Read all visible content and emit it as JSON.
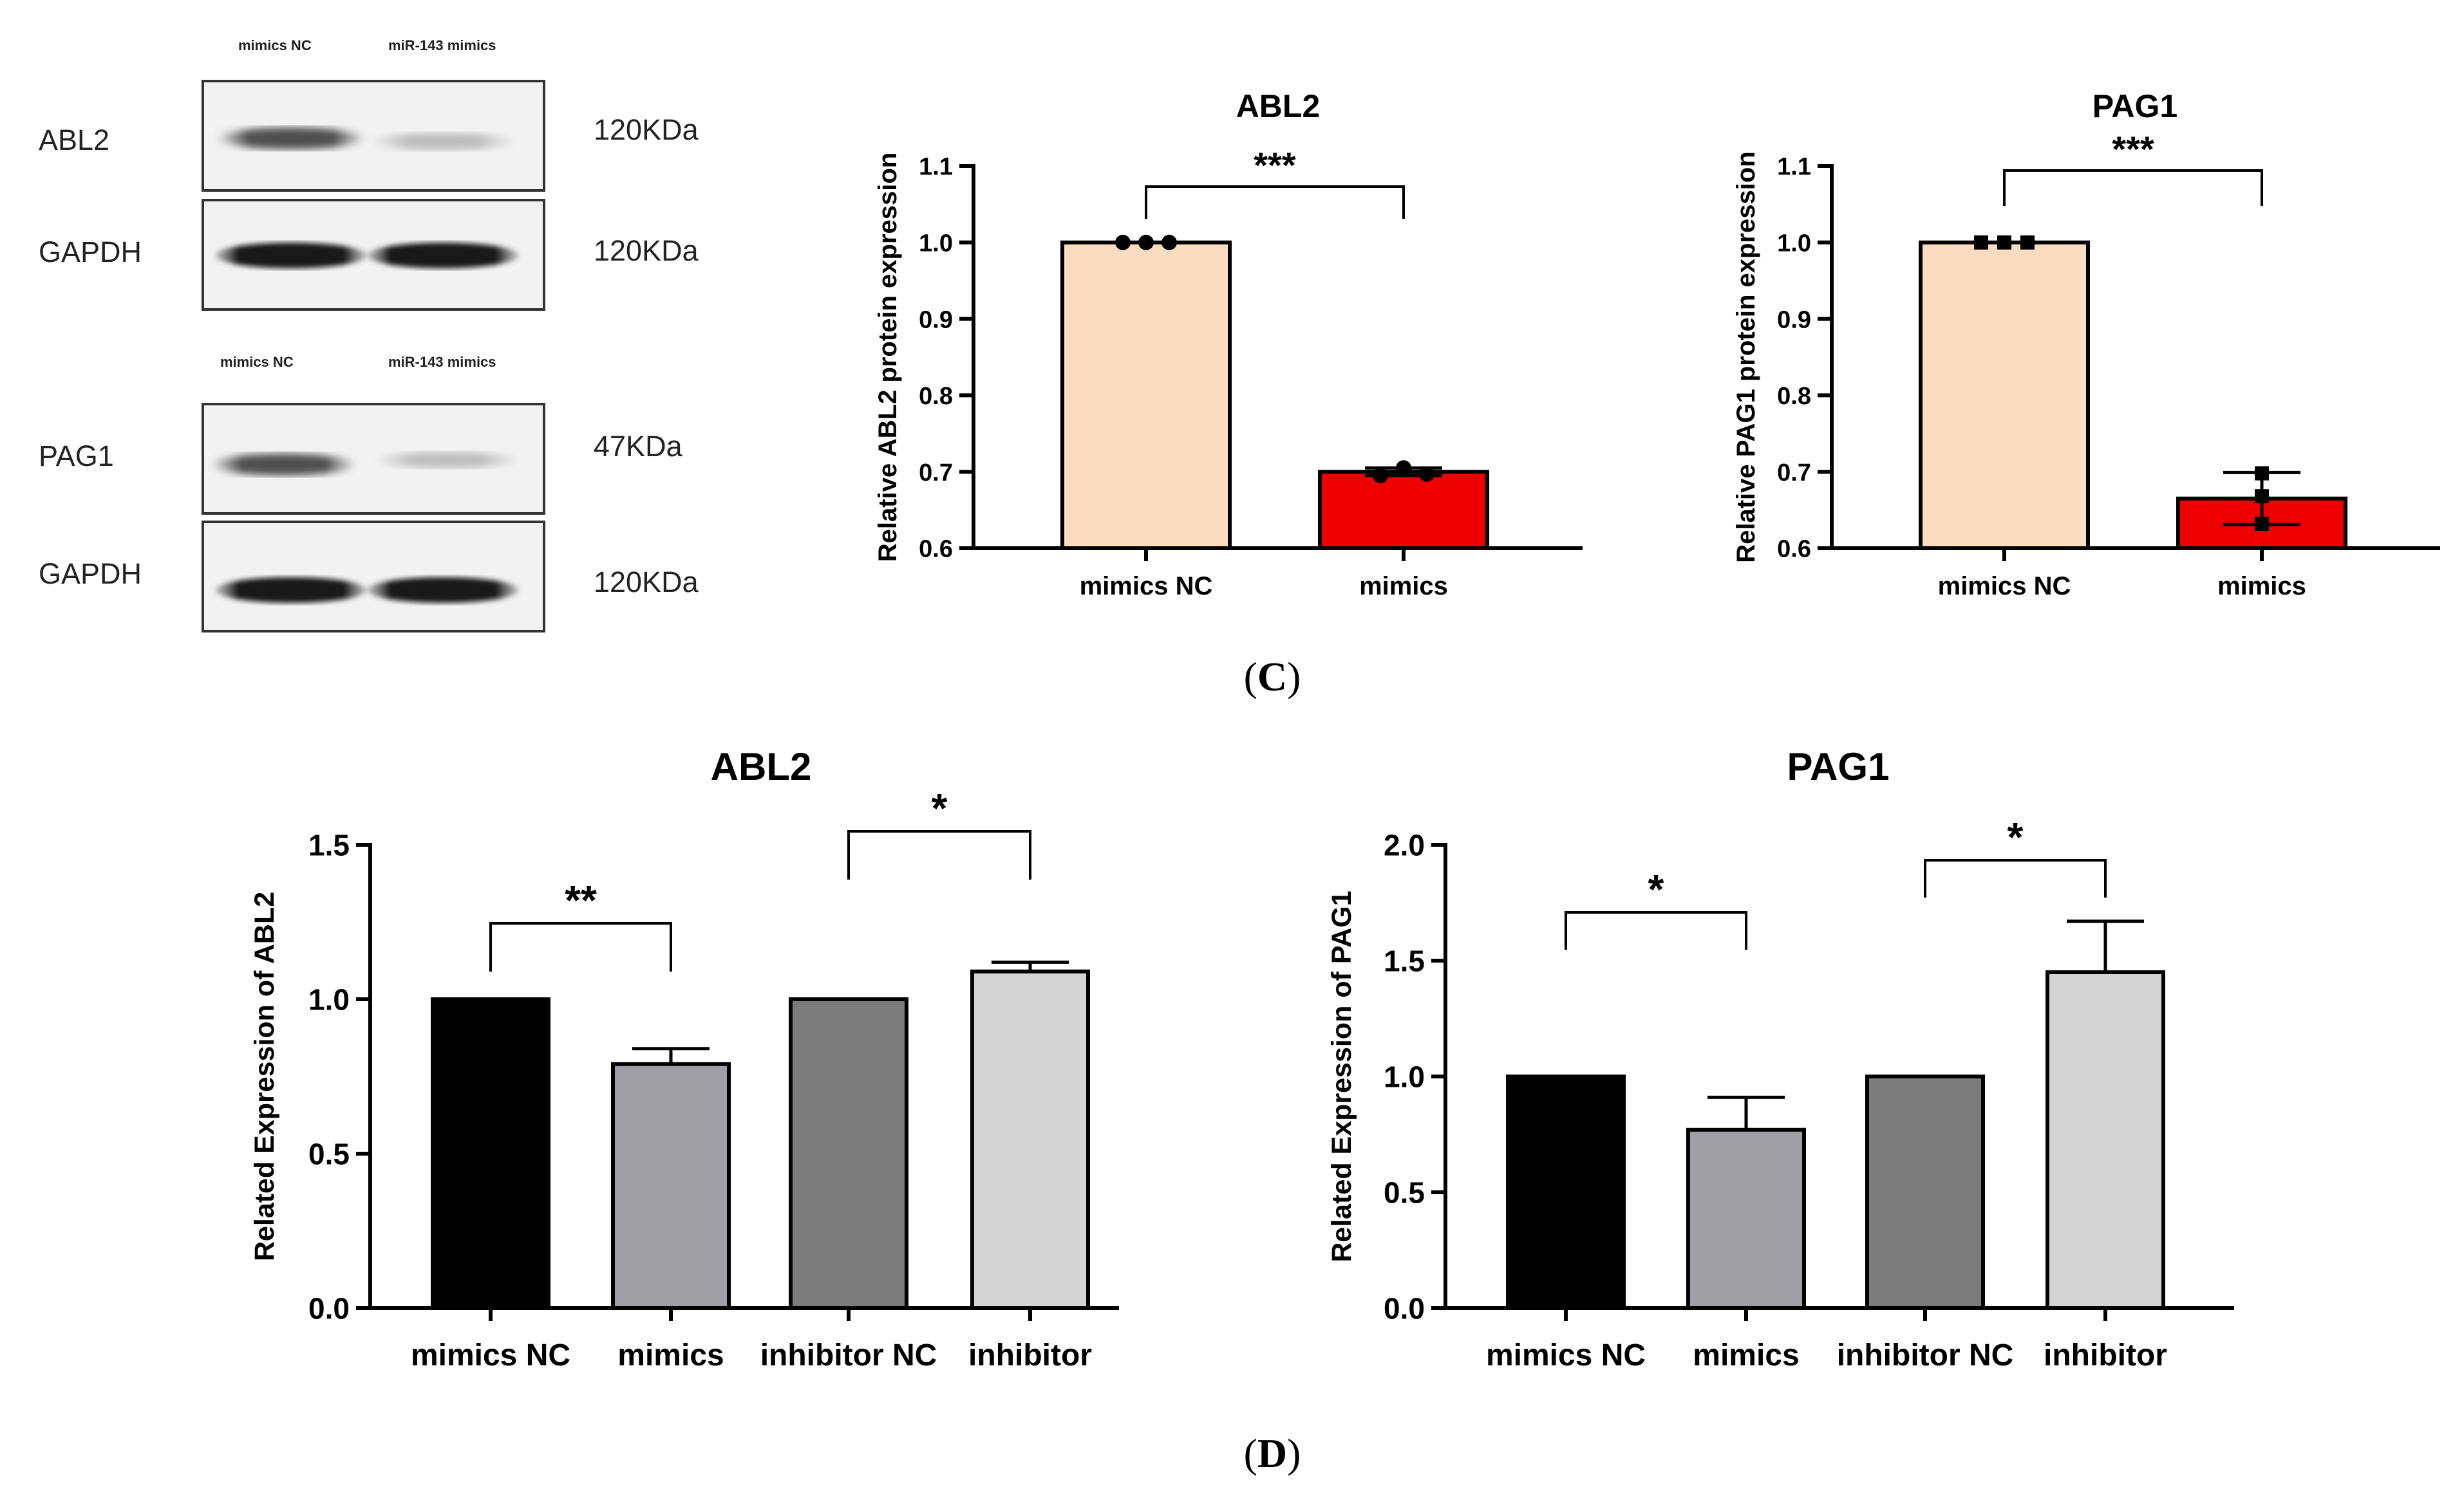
{
  "western_blot": {
    "blot1": {
      "lanes": [
        "mimics NC",
        "miR-143 mimics"
      ],
      "rows": [
        {
          "protein": "ABL2",
          "size": "120KDa"
        },
        {
          "protein": "GAPDH",
          "size": "120KDa"
        }
      ]
    },
    "blot2": {
      "lanes": [
        "mimics NC",
        "miR-143 mimics"
      ],
      "rows": [
        {
          "protein": "PAG1",
          "size": "47KDa"
        },
        {
          "protein": "GAPDH",
          "size": "120KDa"
        }
      ]
    }
  },
  "panel_labels": {
    "c_prefix": "(",
    "c_letter": "C",
    "c_suffix": ")",
    "d_prefix": "(",
    "d_letter": "D",
    "d_suffix": ")"
  },
  "colors": {
    "mimics_nc_c": "#fbdcc0",
    "mimics_c": "#ee0000",
    "d_bar1": "#000000",
    "d_bar2": "#a0a0a4",
    "d_bar3": "#7c7c7c",
    "d_bar4": "#d4d4d4"
  },
  "chart_data": [
    {
      "id": "c-abl2",
      "type": "bar",
      "title": "ABL2",
      "ylabel": "Relative ABL2 protein expression",
      "xlabel": "",
      "categories": [
        "mimics NC",
        "mimics"
      ],
      "values": [
        1.0,
        0.7
      ],
      "errors": [
        0,
        0.005
      ],
      "points": [
        [
          1.0,
          1.0,
          1.0
        ],
        [
          0.695,
          0.705,
          0.697
        ]
      ],
      "ylim": [
        0.6,
        1.1
      ],
      "yticks": [
        "0.6",
        "0.7",
        "0.8",
        "0.9",
        "1.0",
        "1.1"
      ],
      "significance": [
        {
          "from": 0,
          "to": 1,
          "label": "***"
        }
      ]
    },
    {
      "id": "c-pag1",
      "type": "bar",
      "title": "PAG1",
      "ylabel": "Relative PAG1 protein expression",
      "xlabel": "",
      "categories": [
        "mimics NC",
        "mimics"
      ],
      "values": [
        1.0,
        0.665
      ],
      "errors": [
        0,
        0.034
      ],
      "points": [
        [
          1.0,
          1.0,
          1.0
        ],
        [
          0.698,
          0.668,
          0.632
        ]
      ],
      "ylim": [
        0.6,
        1.1
      ],
      "yticks": [
        "0.6",
        "0.7",
        "0.8",
        "0.9",
        "1.0",
        "1.1"
      ],
      "significance": [
        {
          "from": 0,
          "to": 1,
          "label": "***"
        }
      ]
    },
    {
      "id": "d-abl2",
      "type": "bar",
      "title": "ABL2",
      "ylabel": "Related Expression of ABL2",
      "xlabel": "",
      "categories": [
        "mimics NC",
        "mimics",
        "inhibitor NC",
        "inhibitor"
      ],
      "values": [
        1.0,
        0.79,
        1.0,
        1.09
      ],
      "errors": [
        0,
        0.05,
        0,
        0.03
      ],
      "ylim": [
        0.0,
        1.5
      ],
      "yticks": [
        "0.0",
        "0.5",
        "1.0",
        "1.5"
      ],
      "significance": [
        {
          "from": 0,
          "to": 1,
          "label": "**"
        },
        {
          "from": 2,
          "to": 3,
          "label": "*"
        }
      ]
    },
    {
      "id": "d-pag1",
      "type": "bar",
      "title": "PAG1",
      "ylabel": "Related Expression of PAG1",
      "xlabel": "",
      "categories": [
        "mimics NC",
        "mimics",
        "inhibitor NC",
        "inhibitor"
      ],
      "values": [
        1.0,
        0.77,
        1.0,
        1.45
      ],
      "errors": [
        0,
        0.14,
        0,
        0.22
      ],
      "ylim": [
        0.0,
        2.0
      ],
      "yticks": [
        "0.0",
        "0.5",
        "1.0",
        "1.5",
        "2.0"
      ],
      "significance": [
        {
          "from": 0,
          "to": 1,
          "label": "*"
        },
        {
          "from": 2,
          "to": 3,
          "label": "*"
        }
      ]
    }
  ]
}
